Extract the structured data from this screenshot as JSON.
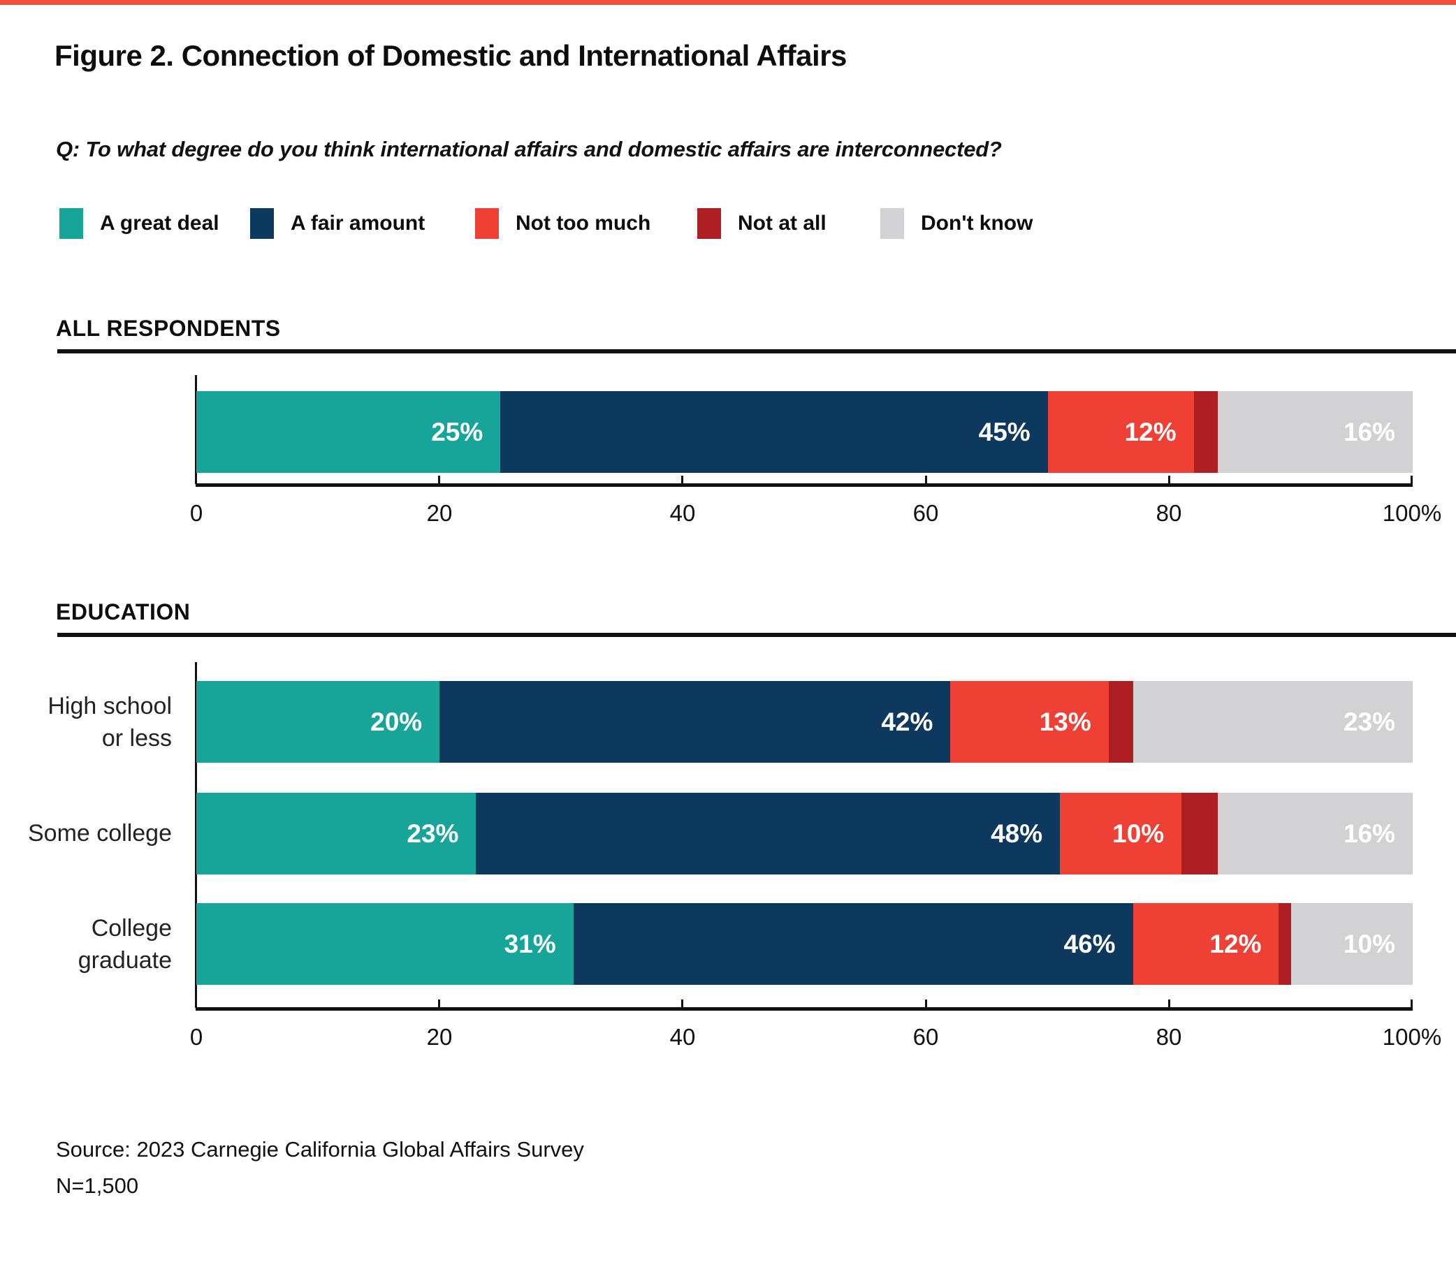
{
  "page": {
    "accent_rule_color": "#F0503C",
    "title": "Figure 2. Connection of Domestic and International Affairs",
    "question": "Q: To what degree do you think international affairs and domestic affairs are interconnected?"
  },
  "legend": {
    "items": [
      {
        "label": "A great deal",
        "color": "#17A59A"
      },
      {
        "label": "A fair amount",
        "color": "#0D395F"
      },
      {
        "label": "Not too much",
        "color": "#EF4035"
      },
      {
        "label": "Not at all",
        "color": "#AE1F24"
      },
      {
        "label": "Don't know",
        "color": "#D2D2D4"
      }
    ]
  },
  "chart_data": [
    {
      "type": "bar",
      "stacked": true,
      "orientation": "horizontal",
      "section_title": "ALL RESPONDENTS",
      "series_names": [
        "A great deal",
        "A fair amount",
        "Not too much",
        "Not at all",
        "Don't know"
      ],
      "series_colors": [
        "#17A59A",
        "#0D395F",
        "#EF4035",
        "#AE1F24",
        "#D2D2D4"
      ],
      "xlim": [
        0,
        100
      ],
      "grid": false,
      "x_ticks": [
        "0",
        "20",
        "40",
        "60",
        "80",
        "100%"
      ],
      "rows": [
        {
          "category": "All respondents",
          "values": [
            25,
            45,
            12,
            2,
            16
          ],
          "labels": [
            "25%",
            "45%",
            "12%",
            "",
            "16%"
          ]
        }
      ]
    },
    {
      "type": "bar",
      "stacked": true,
      "orientation": "horizontal",
      "section_title": "EDUCATION",
      "series_names": [
        "A great deal",
        "A fair amount",
        "Not too much",
        "Not at all",
        "Don't know"
      ],
      "series_colors": [
        "#17A59A",
        "#0D395F",
        "#EF4035",
        "#AE1F24",
        "#D2D2D4"
      ],
      "xlim": [
        0,
        100
      ],
      "grid": false,
      "x_ticks": [
        "0",
        "20",
        "40",
        "60",
        "80",
        "100%"
      ],
      "rows": [
        {
          "category": "High school or less",
          "category_lines": [
            "High school",
            "or less"
          ],
          "values": [
            20,
            42,
            13,
            2,
            23
          ],
          "labels": [
            "20%",
            "42%",
            "13%",
            "",
            "23%"
          ]
        },
        {
          "category": "Some college",
          "category_lines": [
            "Some college"
          ],
          "values": [
            23,
            48,
            10,
            3,
            16
          ],
          "labels": [
            "23%",
            "48%",
            "10%",
            "",
            "16%"
          ]
        },
        {
          "category": "College graduate",
          "category_lines": [
            "College",
            "graduate"
          ],
          "values": [
            31,
            46,
            12,
            1,
            10
          ],
          "labels": [
            "31%",
            "46%",
            "12%",
            "",
            "10%"
          ]
        }
      ]
    }
  ],
  "source": {
    "line1": "Source: 2023 Carnegie California Global Affairs Survey",
    "line2": "N=1,500"
  }
}
